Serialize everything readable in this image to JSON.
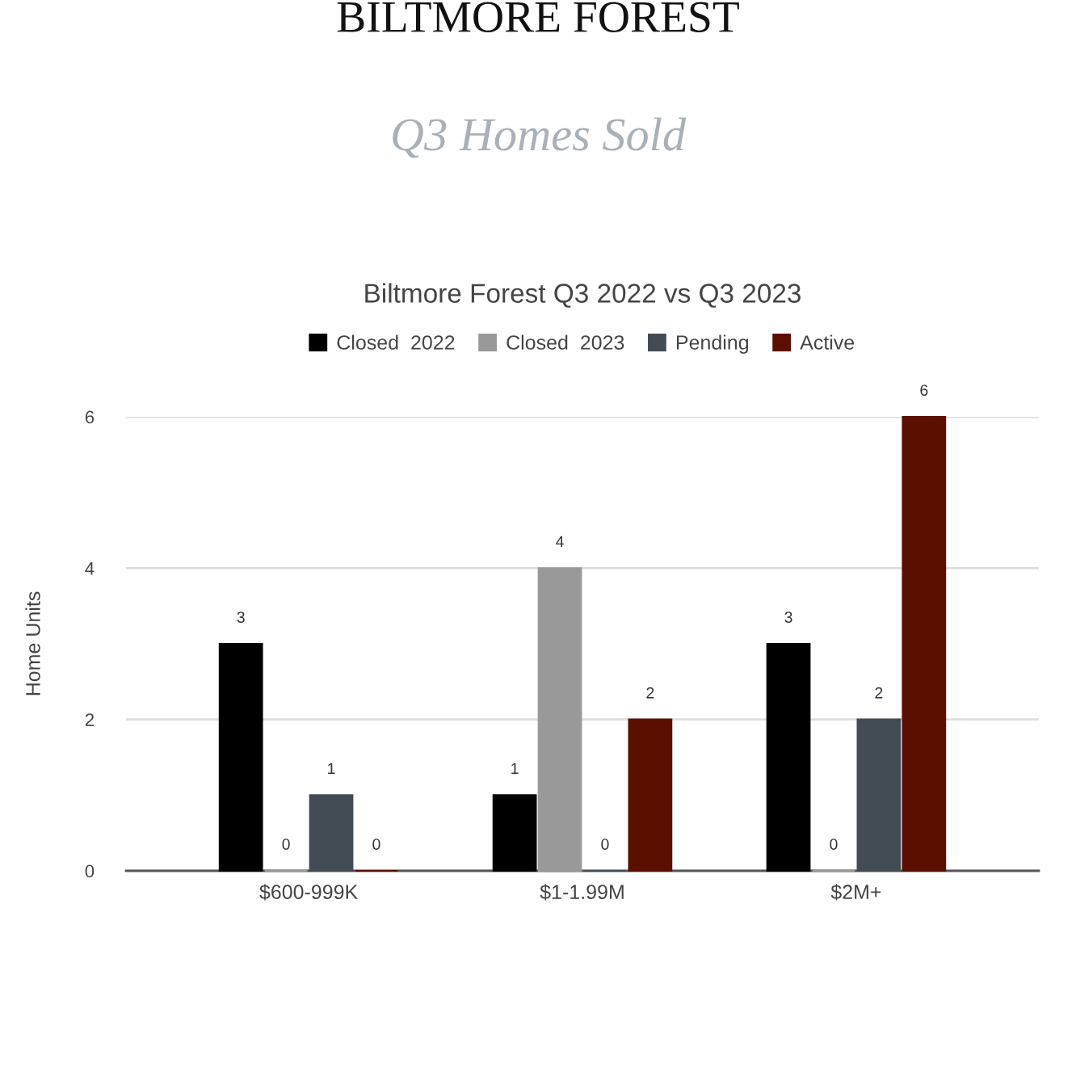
{
  "chart_data": {
    "type": "bar",
    "title": "Biltmore Forest Q3 2022 vs Q3 2023",
    "annotations": [
      "BILTMORE FOREST",
      "Q3 Homes Sold"
    ],
    "ylabel": "Home Units",
    "categories": [
      "$600-999K",
      "$1-1.99M",
      "$2M+"
    ],
    "series": [
      {
        "name": "Closed  2022",
        "color": "#000000",
        "values": [
          3,
          1,
          3
        ]
      },
      {
        "name": "Closed  2023",
        "color": "#999999",
        "values": [
          0,
          4,
          0
        ]
      },
      {
        "name": "Pending",
        "color": "#434b55",
        "values": [
          1,
          0,
          2
        ]
      },
      {
        "name": "Active",
        "color": "#5b0f00",
        "values": [
          0,
          2,
          6
        ]
      }
    ],
    "ylim": [
      0,
      6
    ],
    "yticks": [
      0,
      2,
      4,
      6
    ],
    "grid": "y",
    "legend": "top",
    "data_labels": true
  }
}
